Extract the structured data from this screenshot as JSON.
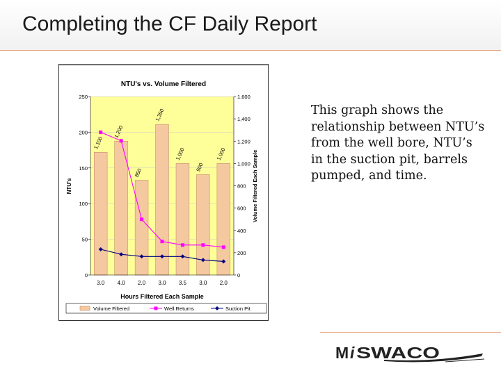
{
  "slide": {
    "title": "Completing the CF Daily Report",
    "body_text": "This graph shows the relationship between NTU’s from the well bore, NTU’s in the suction pit, barrels pumped, and time.",
    "logo_prefix": "M",
    "logo_i": "i",
    "logo_rest": "SWACO"
  },
  "colors": {
    "accent_line": "#e8a27a",
    "plot_bg": "#ffff99",
    "bar_fill": "#f5c9a0",
    "bar_stroke": "#c8906a",
    "well_returns": "#ff00ff",
    "suction_pit": "#000080",
    "logo": "#222222"
  },
  "chart_data": {
    "type": "bar",
    "title": "NTU's vs. Volume Filtered",
    "xlabel": "Hours Filtered Each Sample",
    "ylabel": "NTU's",
    "ylabel_right": "Volume Filtered Each Sample",
    "categories": [
      "3.0",
      "4.0",
      "2.0",
      "3.0",
      "3.5",
      "3.0",
      "2.0"
    ],
    "ylim": [
      0,
      250
    ],
    "yticks": [
      "0",
      "50",
      "100",
      "150",
      "200",
      "250"
    ],
    "ylim_right": [
      0,
      1600
    ],
    "yticks_right": [
      "0",
      "200",
      "400",
      "600",
      "800",
      "1,000",
      "1,200",
      "1,400",
      "1,600"
    ],
    "series": [
      {
        "name": "Volume Filtered",
        "axis": "right",
        "kind": "bar",
        "values": [
          1100,
          1200,
          850,
          1350,
          1000,
          900,
          1000
        ],
        "labels": [
          "1,100",
          "1,200",
          "850",
          "1,350",
          "1,000",
          "900",
          "1,000"
        ]
      },
      {
        "name": "Well Returns",
        "axis": "left",
        "kind": "line",
        "values": [
          200,
          188,
          78,
          47,
          42,
          42,
          39
        ]
      },
      {
        "name": "Suction Pit",
        "axis": "left",
        "kind": "line",
        "values": [
          36,
          29,
          26,
          26,
          26,
          21,
          19
        ]
      }
    ],
    "legend_position": "bottom"
  }
}
